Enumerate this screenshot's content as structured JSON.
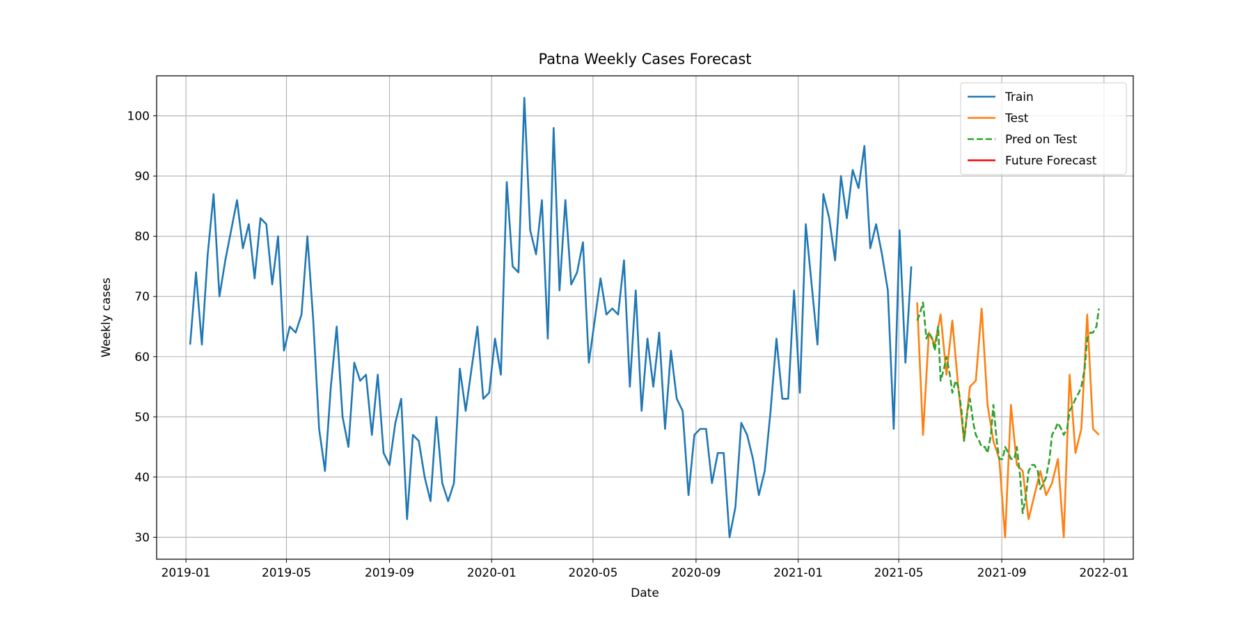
{
  "chart_data": {
    "type": "line",
    "title": "Patna Weekly Cases Forecast",
    "xlabel": "Date",
    "ylabel": "Weekly cases",
    "x_type": "date",
    "xlim": [
      "2018-11-27",
      "2022-02-05"
    ],
    "ylim": [
      26.35,
      106.65
    ],
    "x_ticks": [
      "2019-01-01",
      "2019-05-01",
      "2019-09-01",
      "2020-01-01",
      "2020-05-01",
      "2020-09-01",
      "2021-01-01",
      "2021-05-01",
      "2021-09-01",
      "2022-01-01"
    ],
    "x_tick_labels": [
      "2019-01",
      "2019-05",
      "2019-09",
      "2020-01",
      "2020-05",
      "2020-09",
      "2021-01",
      "2021-05",
      "2021-09",
      "2022-01"
    ],
    "y_ticks": [
      30,
      40,
      50,
      60,
      70,
      80,
      90,
      100
    ],
    "grid": true,
    "legend_position": "top-right",
    "series": [
      {
        "name": "Train",
        "color": "#1f77b4",
        "style": "solid",
        "x": [
          "2019-01-06",
          "2019-01-13",
          "2019-01-20",
          "2019-01-27",
          "2019-02-03",
          "2019-02-10",
          "2019-02-17",
          "2019-02-24",
          "2019-03-03",
          "2019-03-10",
          "2019-03-17",
          "2019-03-24",
          "2019-03-31",
          "2019-04-07",
          "2019-04-14",
          "2019-04-21",
          "2019-04-28",
          "2019-05-05",
          "2019-05-12",
          "2019-05-19",
          "2019-05-26",
          "2019-06-02",
          "2019-06-09",
          "2019-06-16",
          "2019-06-23",
          "2019-06-30",
          "2019-07-07",
          "2019-07-14",
          "2019-07-21",
          "2019-07-28",
          "2019-08-04",
          "2019-08-11",
          "2019-08-18",
          "2019-08-25",
          "2019-09-01",
          "2019-09-08",
          "2019-09-15",
          "2019-09-22",
          "2019-09-29",
          "2019-10-06",
          "2019-10-13",
          "2019-10-20",
          "2019-10-27",
          "2019-11-03",
          "2019-11-10",
          "2019-11-17",
          "2019-11-24",
          "2019-12-01",
          "2019-12-08",
          "2019-12-15",
          "2019-12-22",
          "2019-12-29",
          "2020-01-05",
          "2020-01-12",
          "2020-01-19",
          "2020-01-26",
          "2020-02-02",
          "2020-02-09",
          "2020-02-16",
          "2020-02-23",
          "2020-03-01",
          "2020-03-08",
          "2020-03-15",
          "2020-03-22",
          "2020-03-29",
          "2020-04-05",
          "2020-04-12",
          "2020-04-19",
          "2020-04-26",
          "2020-05-03",
          "2020-05-10",
          "2020-05-17",
          "2020-05-24",
          "2020-05-31",
          "2020-06-07",
          "2020-06-14",
          "2020-06-21",
          "2020-06-28",
          "2020-07-05",
          "2020-07-12",
          "2020-07-19",
          "2020-07-26",
          "2020-08-02",
          "2020-08-09",
          "2020-08-16",
          "2020-08-23",
          "2020-08-30",
          "2020-09-06",
          "2020-09-13",
          "2020-09-20",
          "2020-09-27",
          "2020-10-04",
          "2020-10-11",
          "2020-10-18",
          "2020-10-25",
          "2020-11-01",
          "2020-11-08",
          "2020-11-15",
          "2020-11-22",
          "2020-11-29",
          "2020-12-06",
          "2020-12-13",
          "2020-12-20",
          "2020-12-27",
          "2021-01-03",
          "2021-01-10",
          "2021-01-17",
          "2021-01-24",
          "2021-01-31",
          "2021-02-07",
          "2021-02-14",
          "2021-02-21",
          "2021-02-28",
          "2021-03-07",
          "2021-03-14",
          "2021-03-21",
          "2021-03-28",
          "2021-04-04",
          "2021-04-11",
          "2021-04-18",
          "2021-04-25",
          "2021-05-02",
          "2021-05-09",
          "2021-05-16"
        ],
        "y": [
          62,
          74,
          62,
          77,
          87,
          70,
          76,
          81,
          86,
          78,
          82,
          73,
          83,
          82,
          72,
          80,
          61,
          65,
          64,
          67,
          80,
          66,
          48,
          41,
          55,
          65,
          50,
          45,
          59,
          56,
          57,
          47,
          57,
          44,
          42,
          49,
          53,
          33,
          47,
          46,
          40,
          36,
          50,
          39,
          36,
          39,
          58,
          51,
          58,
          65,
          53,
          54,
          63,
          57,
          89,
          75,
          74,
          103,
          81,
          77,
          86,
          63,
          98,
          71,
          86,
          72,
          74,
          79,
          59,
          66,
          73,
          67,
          68,
          67,
          76,
          55,
          71,
          51,
          63,
          55,
          64,
          48,
          61,
          53,
          51,
          37,
          47,
          48,
          48,
          39,
          44,
          44,
          30,
          35,
          49,
          47,
          43,
          37,
          41,
          51,
          63,
          53,
          53,
          71,
          54,
          82,
          72,
          62,
          87,
          83,
          76,
          90,
          83,
          91,
          88,
          95,
          78,
          82,
          77,
          71,
          48,
          81,
          59,
          75
        ]
      },
      {
        "name": "Test",
        "color": "#ff7f0e",
        "style": "solid",
        "x": [
          "2021-05-23",
          "2021-05-30",
          "2021-06-06",
          "2021-06-13",
          "2021-06-20",
          "2021-06-27",
          "2021-07-04",
          "2021-07-11",
          "2021-07-18",
          "2021-07-25",
          "2021-08-01",
          "2021-08-08",
          "2021-08-15",
          "2021-08-22",
          "2021-08-29",
          "2021-09-05",
          "2021-09-12",
          "2021-09-19",
          "2021-09-26",
          "2021-10-03",
          "2021-10-10",
          "2021-10-17",
          "2021-10-24",
          "2021-10-31",
          "2021-11-07",
          "2021-11-14",
          "2021-11-21",
          "2021-11-28",
          "2021-12-05",
          "2021-12-12",
          "2021-12-19",
          "2021-12-26"
        ],
        "y": [
          69,
          47,
          64,
          62,
          67,
          57,
          66,
          55,
          46,
          55,
          56,
          68,
          52,
          46,
          43,
          30,
          52,
          42,
          41,
          33,
          37,
          41,
          37,
          39,
          43,
          30,
          57,
          44,
          48,
          67,
          48,
          47
        ]
      },
      {
        "name": "Pred on Test",
        "color": "#2ca02c",
        "style": "dashed",
        "x": [
          "2021-05-23",
          "2021-05-26",
          "2021-05-30",
          "2021-06-03",
          "2021-06-06",
          "2021-06-10",
          "2021-06-13",
          "2021-06-17",
          "2021-06-20",
          "2021-06-24",
          "2021-06-27",
          "2021-07-01",
          "2021-07-04",
          "2021-07-08",
          "2021-07-11",
          "2021-07-15",
          "2021-07-18",
          "2021-07-22",
          "2021-07-25",
          "2021-07-29",
          "2021-08-01",
          "2021-08-05",
          "2021-08-08",
          "2021-08-12",
          "2021-08-15",
          "2021-08-19",
          "2021-08-22",
          "2021-08-26",
          "2021-08-29",
          "2021-09-02",
          "2021-09-05",
          "2021-09-09",
          "2021-09-12",
          "2021-09-16",
          "2021-09-19",
          "2021-09-23",
          "2021-09-26",
          "2021-09-30",
          "2021-10-03",
          "2021-10-07",
          "2021-10-10",
          "2021-10-14",
          "2021-10-17",
          "2021-10-21",
          "2021-10-24",
          "2021-10-28",
          "2021-10-31",
          "2021-11-04",
          "2021-11-07",
          "2021-11-11",
          "2021-11-14",
          "2021-11-18",
          "2021-11-21",
          "2021-11-25",
          "2021-11-28",
          "2021-12-02",
          "2021-12-05",
          "2021-12-09",
          "2021-12-12",
          "2021-12-16",
          "2021-12-19",
          "2021-12-23",
          "2021-12-26"
        ],
        "y": [
          66,
          67,
          69,
          63,
          64,
          63,
          61,
          65,
          56,
          58,
          60,
          57,
          54,
          56,
          55,
          51,
          46,
          51,
          53,
          49,
          47,
          46,
          45,
          45,
          44,
          47,
          52,
          46,
          43,
          43,
          45,
          44,
          43,
          43,
          45,
          40,
          34,
          37,
          41,
          42,
          42,
          41,
          38,
          39,
          40,
          43,
          47,
          48,
          49,
          48,
          47,
          48,
          51,
          52,
          53,
          54,
          55,
          58,
          63,
          64,
          64,
          65,
          68
        ]
      },
      {
        "name": "Future Forecast",
        "color": "#ff0000",
        "style": "solid",
        "x": [],
        "y": []
      }
    ]
  }
}
